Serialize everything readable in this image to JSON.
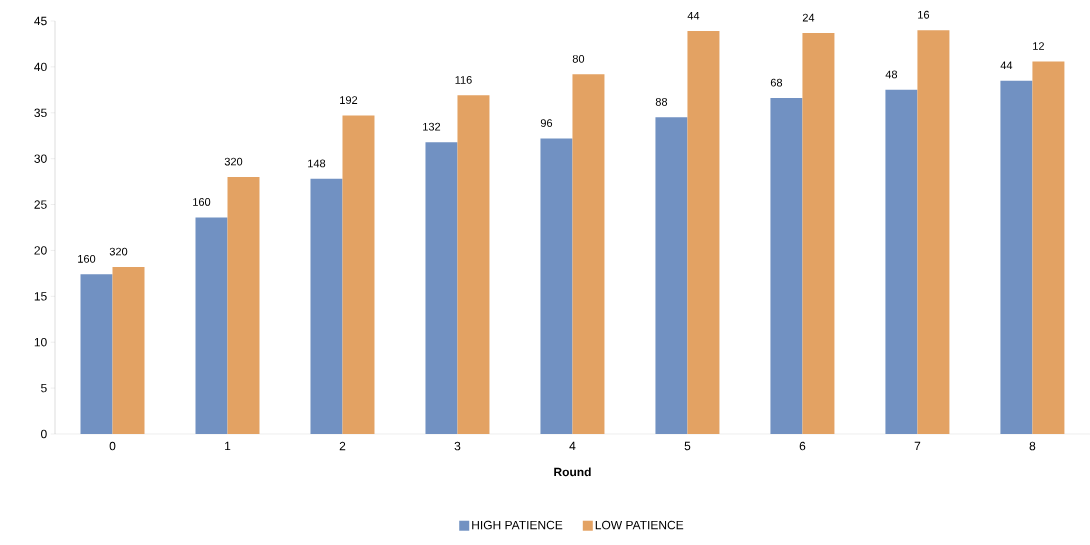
{
  "chart_data": {
    "type": "bar",
    "xlabel": "Round",
    "categories": [
      "0",
      "1",
      "2",
      "3",
      "4",
      "5",
      "6",
      "7",
      "8"
    ],
    "series": [
      {
        "name": "HIGH PATIENCE",
        "color": "#7191c2",
        "values": [
          17.4,
          23.6,
          27.8,
          31.8,
          32.2,
          34.5,
          36.6,
          37.5,
          38.5
        ]
      },
      {
        "name": "LOW PATIENCE",
        "color": "#e3a263",
        "values": [
          18.2,
          28.0,
          34.7,
          36.9,
          39.2,
          43.9,
          43.7,
          44.0,
          40.6
        ]
      }
    ],
    "annotations": [
      {
        "text": "160",
        "x": "0",
        "y": 17.4
      },
      {
        "text": "320",
        "x": "0",
        "y": 18.2
      },
      {
        "text": "160",
        "x": "1",
        "y": 23.6
      },
      {
        "text": "320",
        "x": "1",
        "y": 28.0
      },
      {
        "text": "148",
        "x": "2",
        "y": 27.8
      },
      {
        "text": "192",
        "x": "2",
        "y": 34.7
      },
      {
        "text": "132",
        "x": "3",
        "y": 31.8
      },
      {
        "text": "116",
        "x": "3",
        "y": 36.9
      },
      {
        "text": "96",
        "x": "4",
        "y": 32.2
      },
      {
        "text": "80",
        "x": "4",
        "y": 39.2
      },
      {
        "text": "88",
        "x": "5",
        "y": 34.5
      },
      {
        "text": "44",
        "x": "5",
        "y": 43.9
      },
      {
        "text": "68",
        "x": "6",
        "y": 36.6
      },
      {
        "text": "24",
        "x": "6",
        "y": 43.7
      },
      {
        "text": "48",
        "x": "7",
        "y": 37.5
      },
      {
        "text": "16",
        "x": "7",
        "y": 44.0
      },
      {
        "text": "44",
        "x": "8",
        "y": 38.5
      },
      {
        "text": "12",
        "x": "8",
        "y": 40.6
      }
    ],
    "ylim": [
      0,
      45
    ],
    "yticks": [
      0,
      5,
      10,
      15,
      20,
      25,
      30,
      35,
      40,
      45
    ],
    "grid": false,
    "legend": "bottom"
  }
}
